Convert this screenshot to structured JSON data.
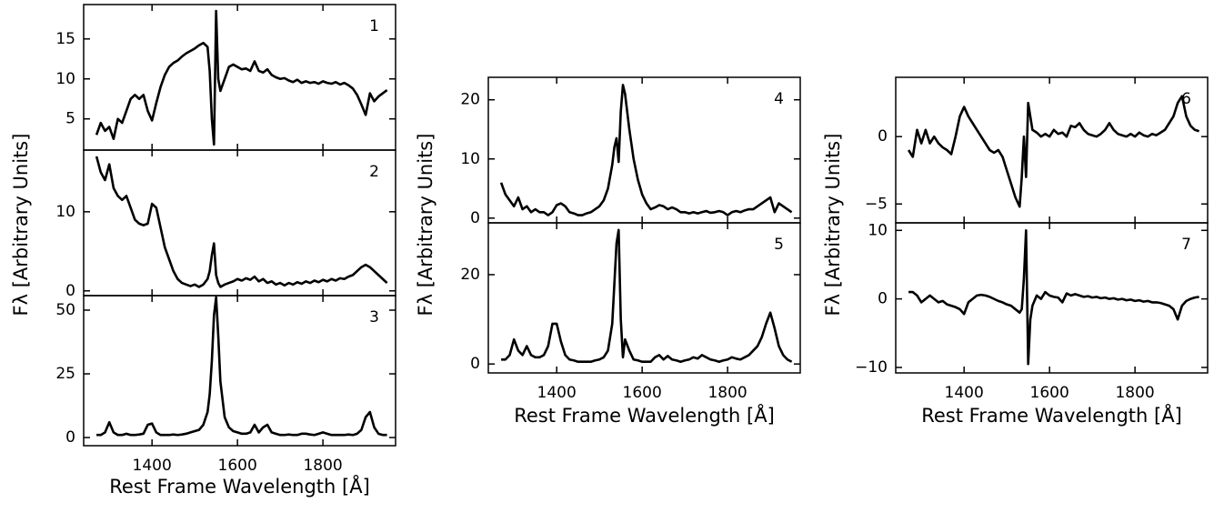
{
  "chart_data": [
    {
      "type": "line",
      "label": "1",
      "color": "#000000",
      "x": [
        1270,
        1280,
        1290,
        1300,
        1310,
        1320,
        1330,
        1340,
        1350,
        1360,
        1370,
        1380,
        1390,
        1400,
        1410,
        1420,
        1430,
        1440,
        1450,
        1460,
        1470,
        1480,
        1490,
        1500,
        1510,
        1520,
        1530,
        1535,
        1540,
        1545,
        1550,
        1555,
        1560,
        1570,
        1580,
        1590,
        1600,
        1610,
        1620,
        1630,
        1640,
        1650,
        1660,
        1670,
        1680,
        1690,
        1700,
        1710,
        1720,
        1730,
        1740,
        1750,
        1760,
        1770,
        1780,
        1790,
        1800,
        1810,
        1820,
        1830,
        1840,
        1850,
        1860,
        1870,
        1880,
        1890,
        1900,
        1910,
        1920,
        1930,
        1940,
        1950
      ],
      "values": [
        3,
        4.5,
        3.5,
        4,
        2.5,
        5,
        4.5,
        6,
        7.5,
        8,
        7.5,
        8,
        6,
        4.8,
        7,
        9,
        10.5,
        11.5,
        12,
        12.3,
        12.8,
        13.2,
        13.5,
        13.8,
        14.2,
        14.5,
        14,
        11,
        5,
        1.8,
        18.5,
        10,
        8.5,
        10,
        11.5,
        11.8,
        11.5,
        11.2,
        11.3,
        11,
        12.2,
        11,
        10.8,
        11.2,
        10.5,
        10.2,
        10,
        10.1,
        9.8,
        9.6,
        9.9,
        9.5,
        9.7,
        9.5,
        9.6,
        9.4,
        9.7,
        9.5,
        9.4,
        9.6,
        9.3,
        9.5,
        9.2,
        8.8,
        8,
        6.8,
        5.5,
        8.2,
        7.2,
        7.8,
        8.2,
        8.6
      ],
      "xlim": [
        1240,
        1970
      ],
      "ylim": [
        1.1,
        19.3
      ],
      "xticks": [
        1400,
        1600,
        1800
      ],
      "yticks": [
        5,
        10,
        15
      ],
      "ylabel": "Fλ [Arbitrary Units]"
    },
    {
      "type": "line",
      "label": "2",
      "color": "#000000",
      "x": [
        1270,
        1280,
        1290,
        1300,
        1310,
        1320,
        1330,
        1340,
        1350,
        1360,
        1370,
        1380,
        1390,
        1400,
        1410,
        1420,
        1430,
        1440,
        1450,
        1460,
        1470,
        1480,
        1490,
        1500,
        1510,
        1520,
        1530,
        1535,
        1540,
        1545,
        1550,
        1555,
        1560,
        1570,
        1580,
        1590,
        1600,
        1610,
        1620,
        1630,
        1640,
        1650,
        1660,
        1670,
        1680,
        1690,
        1700,
        1710,
        1720,
        1730,
        1740,
        1750,
        1760,
        1770,
        1780,
        1790,
        1800,
        1810,
        1820,
        1830,
        1840,
        1850,
        1860,
        1870,
        1880,
        1890,
        1900,
        1910,
        1920,
        1930,
        1940,
        1950
      ],
      "values": [
        17,
        15,
        14,
        16,
        13,
        12,
        11.5,
        12,
        10.5,
        9,
        8.5,
        8.3,
        8.5,
        11,
        10.5,
        8,
        5.5,
        4,
        2.5,
        1.5,
        1,
        0.8,
        0.6,
        0.8,
        0.5,
        0.8,
        1.5,
        2.5,
        4.5,
        6,
        2,
        1,
        0.5,
        0.8,
        1,
        1.2,
        1.5,
        1.3,
        1.6,
        1.4,
        1.8,
        1.2,
        1.5,
        1,
        1.2,
        0.8,
        1,
        0.7,
        1,
        0.8,
        1.1,
        0.9,
        1.2,
        1,
        1.3,
        1.1,
        1.4,
        1.2,
        1.5,
        1.3,
        1.6,
        1.5,
        1.8,
        2,
        2.5,
        3,
        3.3,
        3,
        2.5,
        2,
        1.5,
        1
      ],
      "xlim": [
        1240,
        1970
      ],
      "ylim": [
        -0.6,
        17.8
      ],
      "xticks": [
        1400,
        1600,
        1800
      ],
      "yticks": [
        0,
        10
      ]
    },
    {
      "type": "line",
      "label": "3",
      "color": "#000000",
      "x": [
        1270,
        1280,
        1290,
        1300,
        1310,
        1320,
        1330,
        1340,
        1350,
        1360,
        1370,
        1380,
        1390,
        1400,
        1410,
        1420,
        1430,
        1440,
        1450,
        1460,
        1470,
        1480,
        1490,
        1500,
        1510,
        1520,
        1530,
        1535,
        1540,
        1545,
        1550,
        1555,
        1560,
        1570,
        1580,
        1590,
        1600,
        1610,
        1620,
        1630,
        1640,
        1650,
        1660,
        1670,
        1680,
        1690,
        1700,
        1710,
        1720,
        1730,
        1740,
        1750,
        1760,
        1770,
        1780,
        1790,
        1800,
        1810,
        1820,
        1830,
        1840,
        1850,
        1860,
        1870,
        1880,
        1890,
        1900,
        1910,
        1920,
        1930,
        1940,
        1950
      ],
      "values": [
        1,
        1,
        2,
        6,
        2,
        1,
        1,
        1.5,
        1,
        1,
        1.2,
        1.5,
        5,
        5.5,
        2,
        1,
        1,
        1,
        1.2,
        1,
        1.2,
        1.5,
        2,
        2.5,
        3,
        5,
        10,
        17,
        30,
        48,
        55,
        40,
        22,
        8,
        4,
        2.5,
        2,
        1.5,
        1.5,
        2,
        5,
        2,
        4,
        5,
        2,
        1.5,
        1,
        1,
        1.2,
        1,
        1,
        1.5,
        1.5,
        1.2,
        1,
        1.5,
        2,
        1.5,
        1,
        1,
        1,
        1,
        1.2,
        1,
        1.5,
        3,
        8,
        10,
        4,
        1.5,
        1,
        1
      ],
      "xlim": [
        1240,
        1970
      ],
      "ylim": [
        -3.2,
        55.7
      ],
      "xticks": [
        1400,
        1600,
        1800
      ],
      "yticks": [
        0,
        25,
        50
      ],
      "xlabel": "Rest Frame Wavelength [Å]"
    },
    {
      "type": "line",
      "label": "4",
      "color": "#000000",
      "x": [
        1270,
        1280,
        1290,
        1300,
        1310,
        1320,
        1330,
        1340,
        1350,
        1360,
        1370,
        1380,
        1390,
        1400,
        1410,
        1420,
        1430,
        1440,
        1450,
        1460,
        1470,
        1480,
        1490,
        1500,
        1510,
        1520,
        1530,
        1535,
        1540,
        1545,
        1550,
        1555,
        1560,
        1570,
        1580,
        1590,
        1600,
        1610,
        1620,
        1630,
        1640,
        1650,
        1660,
        1670,
        1680,
        1690,
        1700,
        1710,
        1720,
        1730,
        1740,
        1750,
        1760,
        1770,
        1780,
        1790,
        1800,
        1810,
        1820,
        1830,
        1840,
        1850,
        1860,
        1870,
        1880,
        1890,
        1900,
        1910,
        1920,
        1930,
        1940,
        1950
      ],
      "values": [
        6,
        4,
        3,
        2,
        3.5,
        1.5,
        2,
        1,
        1.5,
        1,
        1,
        0.5,
        1,
        2.2,
        2.5,
        2,
        1,
        0.8,
        0.5,
        0.5,
        0.8,
        1,
        1.5,
        2,
        3,
        5,
        9,
        12,
        13.5,
        9.5,
        18,
        22.5,
        21,
        15,
        10,
        6.5,
        4,
        2.5,
        1.5,
        1.8,
        2.2,
        2,
        1.5,
        1.8,
        1.5,
        1,
        1,
        0.8,
        1,
        0.8,
        1,
        1.2,
        0.9,
        1,
        1.2,
        1,
        0.5,
        1,
        1.2,
        1,
        1.3,
        1.5,
        1.5,
        2,
        2.5,
        3,
        3.5,
        1,
        2.5,
        2,
        1.5,
        1
      ],
      "xlim": [
        1240,
        1970
      ],
      "ylim": [
        -0.8,
        23.8
      ],
      "xticks": [
        1400,
        1600,
        1800
      ],
      "yticks": [
        0,
        10,
        20
      ],
      "ylabel": "Fλ [Arbitrary Units]"
    },
    {
      "type": "line",
      "label": "5",
      "color": "#000000",
      "x": [
        1270,
        1280,
        1290,
        1300,
        1310,
        1320,
        1330,
        1340,
        1350,
        1360,
        1370,
        1380,
        1390,
        1400,
        1410,
        1420,
        1430,
        1440,
        1450,
        1460,
        1470,
        1480,
        1490,
        1500,
        1510,
        1520,
        1530,
        1535,
        1540,
        1545,
        1550,
        1555,
        1560,
        1570,
        1580,
        1590,
        1600,
        1610,
        1620,
        1630,
        1640,
        1650,
        1660,
        1670,
        1680,
        1690,
        1700,
        1710,
        1720,
        1730,
        1740,
        1750,
        1760,
        1770,
        1780,
        1790,
        1800,
        1810,
        1820,
        1830,
        1840,
        1850,
        1860,
        1870,
        1880,
        1890,
        1900,
        1910,
        1920,
        1930,
        1940,
        1950
      ],
      "values": [
        1,
        1,
        2,
        5.5,
        3,
        2,
        4,
        2,
        1.5,
        1.5,
        2,
        4,
        9,
        9,
        5,
        2,
        1,
        0.8,
        0.5,
        0.5,
        0.5,
        0.5,
        0.8,
        1,
        1.5,
        3,
        9,
        18,
        27,
        30,
        10,
        1.5,
        5.5,
        3,
        1,
        0.8,
        0.5,
        0.5,
        0.5,
        1.5,
        2,
        1,
        1.8,
        1,
        0.8,
        0.5,
        0.8,
        1,
        1.5,
        1.2,
        2,
        1.5,
        1,
        0.8,
        0.5,
        0.8,
        1,
        1.5,
        1.2,
        1,
        1.5,
        2,
        3,
        4,
        6,
        9,
        11.5,
        8,
        4,
        2,
        1,
        0.5
      ],
      "xlim": [
        1240,
        1970
      ],
      "ylim": [
        -2.0,
        31.6
      ],
      "xticks": [
        1400,
        1600,
        1800
      ],
      "yticks": [
        0,
        20
      ],
      "xlabel": "Rest Frame Wavelength [Å]"
    },
    {
      "type": "line",
      "label": "6",
      "color": "#000000",
      "x": [
        1270,
        1280,
        1290,
        1300,
        1310,
        1320,
        1330,
        1340,
        1350,
        1360,
        1370,
        1380,
        1390,
        1400,
        1410,
        1420,
        1430,
        1440,
        1450,
        1460,
        1470,
        1480,
        1490,
        1500,
        1510,
        1520,
        1530,
        1535,
        1540,
        1545,
        1550,
        1555,
        1560,
        1570,
        1580,
        1590,
        1600,
        1610,
        1620,
        1630,
        1640,
        1650,
        1660,
        1670,
        1680,
        1690,
        1700,
        1710,
        1720,
        1730,
        1740,
        1750,
        1760,
        1770,
        1780,
        1790,
        1800,
        1810,
        1820,
        1830,
        1840,
        1850,
        1860,
        1870,
        1880,
        1890,
        1900,
        1910,
        1920,
        1930,
        1940,
        1950
      ],
      "values": [
        -1,
        -1.5,
        0.5,
        -0.5,
        0.5,
        -0.5,
        0,
        -0.5,
        -0.8,
        -1,
        -1.3,
        0,
        1.5,
        2.2,
        1.5,
        1,
        0.5,
        0,
        -0.5,
        -1,
        -1.2,
        -1,
        -1.5,
        -2.5,
        -3.5,
        -4.5,
        -5.2,
        -3,
        0,
        -3,
        2.5,
        1.5,
        0.5,
        0.3,
        0,
        0.2,
        0,
        0.5,
        0.2,
        0.3,
        0,
        0.8,
        0.7,
        1,
        0.5,
        0.2,
        0.1,
        0,
        0.2,
        0.5,
        1,
        0.5,
        0.2,
        0.1,
        0,
        0.2,
        0,
        0.3,
        0.1,
        0,
        0.2,
        0.1,
        0.3,
        0.5,
        1,
        1.5,
        2.5,
        3,
        1.5,
        0.8,
        0.5,
        0.4
      ],
      "xlim": [
        1240,
        1970
      ],
      "ylim": [
        -6.4,
        4.4
      ],
      "xticks": [
        1400,
        1600,
        1800
      ],
      "yticks": [
        {
          "value": -5,
          "label": "−5"
        },
        0
      ],
      "ylabel": "Fλ [Arbitrary Units]"
    },
    {
      "type": "line",
      "label": "7",
      "color": "#000000",
      "x": [
        1270,
        1280,
        1290,
        1300,
        1310,
        1320,
        1330,
        1340,
        1350,
        1360,
        1370,
        1380,
        1390,
        1400,
        1410,
        1420,
        1430,
        1440,
        1450,
        1460,
        1470,
        1480,
        1490,
        1500,
        1510,
        1520,
        1530,
        1535,
        1540,
        1545,
        1550,
        1555,
        1560,
        1570,
        1580,
        1590,
        1600,
        1610,
        1620,
        1630,
        1640,
        1650,
        1660,
        1670,
        1680,
        1690,
        1700,
        1710,
        1720,
        1730,
        1740,
        1750,
        1760,
        1770,
        1780,
        1790,
        1800,
        1810,
        1820,
        1830,
        1840,
        1850,
        1860,
        1870,
        1880,
        1890,
        1900,
        1910,
        1920,
        1930,
        1940,
        1950
      ],
      "values": [
        1,
        1,
        0.5,
        -0.5,
        0,
        0.5,
        0,
        -0.5,
        -0.3,
        -0.8,
        -1,
        -1.2,
        -1.5,
        -2.2,
        -0.5,
        0,
        0.5,
        0.6,
        0.5,
        0.3,
        0,
        -0.3,
        -0.5,
        -0.8,
        -1,
        -1.5,
        -2,
        -1.5,
        3,
        10,
        -9.5,
        -3,
        -1,
        0.5,
        0,
        1,
        0.5,
        0.3,
        0.2,
        -0.5,
        0.8,
        0.5,
        0.7,
        0.5,
        0.3,
        0.4,
        0.2,
        0.3,
        0.1,
        0.2,
        0,
        0.1,
        -0.1,
        0,
        -0.2,
        -0.1,
        -0.3,
        -0.2,
        -0.4,
        -0.3,
        -0.5,
        -0.5,
        -0.6,
        -0.8,
        -1,
        -1.5,
        -3,
        -1,
        -0.3,
        0,
        0.2,
        0.3
      ],
      "xlim": [
        1240,
        1970
      ],
      "ylim": [
        -10.8,
        11.1
      ],
      "xticks": [
        1400,
        1600,
        1800
      ],
      "yticks": [
        {
          "value": -10,
          "label": "−10"
        },
        0,
        {
          "value": 10,
          "label": "10"
        }
      ],
      "xlabel": "Rest Frame Wavelength [Å]"
    }
  ]
}
